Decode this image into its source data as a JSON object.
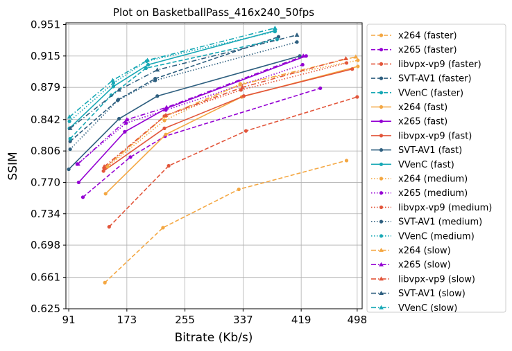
{
  "chart_data": {
    "type": "line",
    "title": "Plot on BasketballPass_416x240_50fps",
    "xlabel": "Bitrate (Kb/s)",
    "ylabel": "SSIM",
    "xlim": [
      87,
      505
    ],
    "ylim": [
      0.625,
      0.953
    ],
    "xticks": [
      "91",
      "173",
      "255",
      "337",
      "419",
      "498"
    ],
    "yticks": [
      "0.625",
      "0.661",
      "0.698",
      "0.734",
      "0.770",
      "0.806",
      "0.842",
      "0.879",
      "0.915",
      "0.951"
    ],
    "grid": true,
    "legend_position": "outside-right",
    "series": [
      {
        "name": "x264 (faster)",
        "color": "#f4a742",
        "dash": "dashed",
        "marker": "circle",
        "x": [
          142,
          224,
          331,
          483
        ],
        "y": [
          0.655,
          0.718,
          0.762,
          0.795
        ]
      },
      {
        "name": "x265 (faster)",
        "color": "#9400d3",
        "dash": "dashed",
        "marker": "circle",
        "x": [
          111,
          178,
          227,
          446
        ],
        "y": [
          0.753,
          0.799,
          0.823,
          0.878
        ]
      },
      {
        "name": "libvpx-vp9 (faster)",
        "color": "#e2553a",
        "dash": "dashed",
        "marker": "circle",
        "x": [
          148,
          232,
          341,
          498
        ],
        "y": [
          0.719,
          0.789,
          0.829,
          0.868
        ]
      },
      {
        "name": "SVT-AV1 (faster)",
        "color": "#2e5f7f",
        "dash": "dashed",
        "marker": "circle",
        "x": [
          93,
          161,
          213,
          387
        ],
        "y": [
          0.817,
          0.865,
          0.889,
          0.937
        ]
      },
      {
        "name": "VVenC (faster)",
        "color": "#17a8b5",
        "dash": "dashed",
        "marker": "circle",
        "x": [
          93,
          151,
          200,
          385
        ],
        "y": [
          0.82,
          0.87,
          0.901,
          0.934
        ]
      },
      {
        "name": "x264 (fast)",
        "color": "#f4a742",
        "dash": "solid",
        "marker": "circle",
        "x": [
          143,
          228,
          335,
          499
        ],
        "y": [
          0.757,
          0.825,
          0.868,
          0.903
        ]
      },
      {
        "name": "x265 (fast)",
        "color": "#9400d3",
        "dash": "solid",
        "marker": "circle",
        "x": [
          105,
          170,
          229,
          426
        ],
        "y": [
          0.77,
          0.828,
          0.855,
          0.915
        ]
      },
      {
        "name": "libvpx-vp9 (fast)",
        "color": "#e2553a",
        "dash": "solid",
        "marker": "circle",
        "x": [
          140,
          226,
          338,
          491
        ],
        "y": [
          0.783,
          0.832,
          0.869,
          0.9
        ]
      },
      {
        "name": "SVT-AV1 (fast)",
        "color": "#2e5f7f",
        "dash": "solid",
        "marker": "circle",
        "x": [
          91,
          162,
          216,
          417
        ],
        "y": [
          0.785,
          0.843,
          0.869,
          0.915
        ]
      },
      {
        "name": "VVenC (fast)",
        "color": "#17a8b5",
        "dash": "solid",
        "marker": "circle",
        "x": [
          92,
          154,
          203,
          382
        ],
        "y": [
          0.832,
          0.88,
          0.905,
          0.944
        ]
      },
      {
        "name": "x264 (medium)",
        "color": "#f4a742",
        "dash": "dotted",
        "marker": "circle",
        "x": [
          146,
          226,
          333,
          499
        ],
        "y": [
          0.788,
          0.841,
          0.883,
          0.91
        ]
      },
      {
        "name": "x265 (medium)",
        "color": "#9400d3",
        "dash": "dotted",
        "marker": "circle",
        "x": [
          103,
          172,
          228,
          421
        ],
        "y": [
          0.791,
          0.838,
          0.853,
          0.905
        ]
      },
      {
        "name": "libvpx-vp9 (medium)",
        "color": "#e2553a",
        "dash": "dotted",
        "marker": "circle",
        "x": [
          141,
          226,
          334,
          483
        ],
        "y": [
          0.786,
          0.846,
          0.876,
          0.907
        ]
      },
      {
        "name": "SVT-AV1 (medium)",
        "color": "#2e5f7f",
        "dash": "dotted",
        "marker": "circle",
        "x": [
          93,
          160,
          213,
          413
        ],
        "y": [
          0.808,
          0.864,
          0.887,
          0.931
        ]
      },
      {
        "name": "VVenC (medium)",
        "color": "#17a8b5",
        "dash": "dotted",
        "marker": "circle",
        "x": [
          92,
          154,
          201,
          382
        ],
        "y": [
          0.84,
          0.884,
          0.909,
          0.943
        ]
      },
      {
        "name": "x264 (slow)",
        "color": "#f4a742",
        "dash": "dashdot",
        "marker": "triangle",
        "x": [
          144,
          227,
          333,
          496
        ],
        "y": [
          0.788,
          0.846,
          0.882,
          0.914
        ]
      },
      {
        "name": "x265 (slow)",
        "color": "#9400d3",
        "dash": "dashdot",
        "marker": "triangle",
        "x": [
          104,
          173,
          229,
          422
        ],
        "y": [
          0.791,
          0.842,
          0.856,
          0.915
        ]
      },
      {
        "name": "libvpx-vp9 (slow)",
        "color": "#e2553a",
        "dash": "dashdot",
        "marker": "triangle",
        "x": [
          141,
          228,
          336,
          482
        ],
        "y": [
          0.788,
          0.847,
          0.879,
          0.912
        ]
      },
      {
        "name": "SVT-AV1 (slow)",
        "color": "#2e5f7f",
        "dash": "dashdot",
        "marker": "triangle",
        "x": [
          93,
          162,
          216,
          413
        ],
        "y": [
          0.832,
          0.876,
          0.899,
          0.939
        ]
      },
      {
        "name": "VVenC (slow)",
        "color": "#17a8b5",
        "dash": "dashdot",
        "marker": "triangle",
        "x": [
          92,
          153,
          202,
          382
        ],
        "y": [
          0.845,
          0.887,
          0.91,
          0.947
        ]
      }
    ]
  }
}
